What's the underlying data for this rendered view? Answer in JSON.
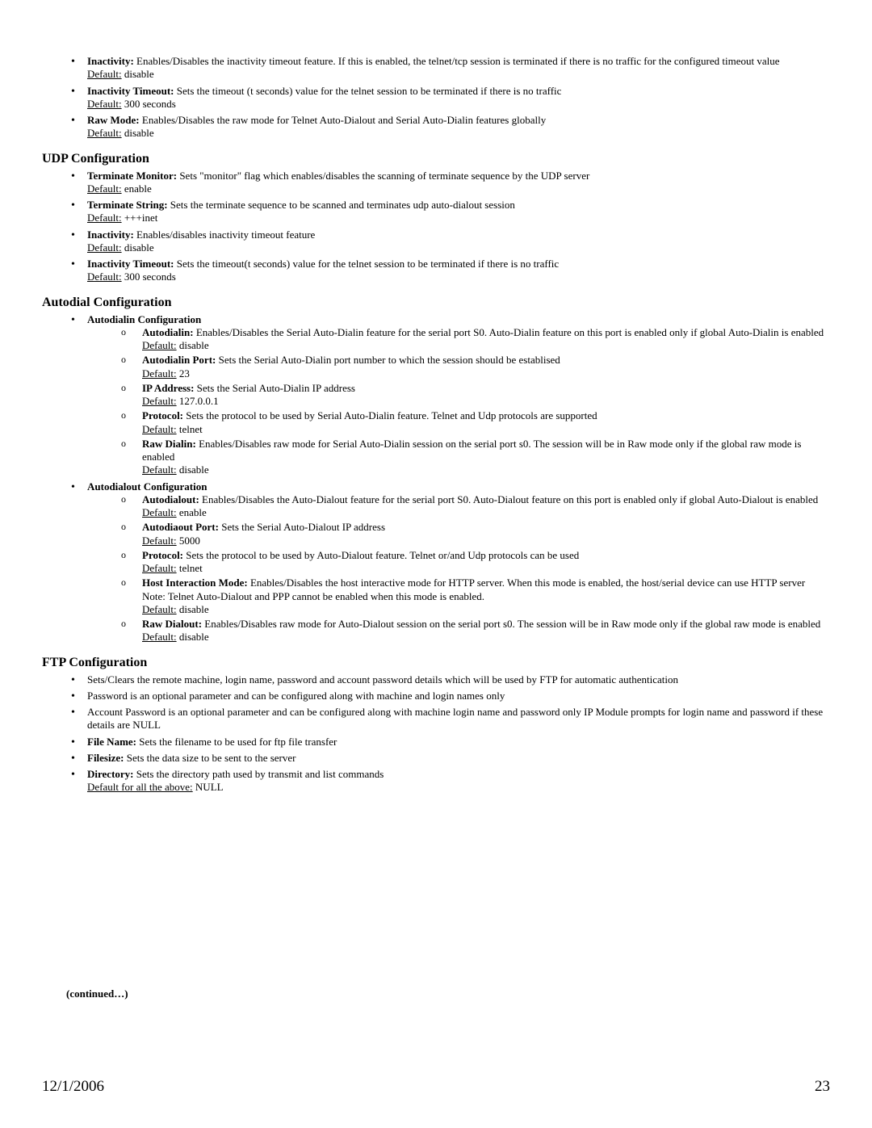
{
  "intro_items": [
    {
      "label": "Inactivity:",
      "desc": "Enables/Disables the inactivity timeout feature. If this is enabled, the telnet/tcp session is terminated if there is no traffic for the configured timeout value",
      "default_label": "Default:",
      "default_value": "disable"
    },
    {
      "label": "Inactivity Timeout:",
      "desc": "Sets the timeout (t seconds) value for the telnet session to be terminated if there is no traffic",
      "default_label": "Default:",
      "default_value": "300 seconds"
    },
    {
      "label": "Raw Mode:",
      "desc": "Enables/Disables the raw mode for Telnet Auto-Dialout and Serial Auto-Dialin features globally",
      "default_label": "Default:",
      "default_value": "disable"
    }
  ],
  "udp_heading": "UDP Configuration",
  "udp_items": [
    {
      "label": "Terminate Monitor:",
      "desc": "Sets \"monitor\" flag which enables/disables the scanning of terminate sequence by the UDP server",
      "default_label": "Default:",
      "default_value": "enable"
    },
    {
      "label": "Terminate String:",
      "desc": "Sets the terminate sequence to be scanned and terminates udp auto-dialout session",
      "default_label": "Default:",
      "default_value": "+++inet"
    },
    {
      "label": "Inactivity:",
      "desc": "Enables/disables inactivity timeout feature",
      "default_label": "Default:",
      "default_value": "disable"
    },
    {
      "label": "Inactivity Timeout:",
      "desc": "Sets the timeout(t seconds) value for the telnet session to be terminated if there is no traffic",
      "default_label": "Default:",
      "default_value": "300 seconds"
    }
  ],
  "autodial_heading": "Autodial Configuration",
  "autodialin_label": "Autodialin Configuration",
  "autodialin_items": [
    {
      "label": "Autodialin:",
      "desc": "Enables/Disables the Serial Auto-Dialin feature for the serial port S0. Auto-Dialin feature on this port is enabled only if global Auto-Dialin is enabled",
      "default_label": "Default:",
      "default_value": "disable"
    },
    {
      "label": "Autodialin Port:",
      "desc": "Sets the Serial Auto-Dialin port number to which the session should be establised",
      "default_label": "Default:",
      "default_value": "23"
    },
    {
      "label": "IP Address:",
      "desc": "Sets the Serial Auto-Dialin IP address",
      "default_label": "Default:",
      "default_value": "127.0.0.1"
    },
    {
      "label": "Protocol:",
      "desc": "Sets the protocol to be used by Serial Auto-Dialin feature. Telnet and Udp protocols are supported",
      "default_label": "Default:",
      "default_value": "telnet"
    },
    {
      "label": "Raw Dialin:",
      "desc": "Enables/Disables raw mode for Serial Auto-Dialin session on the serial port s0. The session will be in Raw mode only if the global raw mode is enabled",
      "default_label": "Default:",
      "default_value": "disable"
    }
  ],
  "autodialout_label": "Autodialout Configuration",
  "autodialout_items": [
    {
      "label": "Autodialout:",
      "desc": "Enables/Disables the Auto-Dialout feature for the serial port S0. Auto-Dialout feature on this port is enabled only if global Auto-Dialout is enabled",
      "default_label": "Default:",
      "default_value": "enable"
    },
    {
      "label": "Autodiaout Port:",
      "desc": "Sets the Serial Auto-Dialout IP address",
      "default_label": "Default:",
      "default_value": "5000"
    },
    {
      "label": "Protocol:",
      "desc": "Sets the protocol to be used by Auto-Dialout feature. Telnet or/and Udp protocols can be used",
      "default_label": "Default:",
      "default_value": "telnet"
    },
    {
      "label": "Host Interaction Mode:",
      "desc": "Enables/Disables the host interactive mode for HTTP server. When this mode is enabled, the host/serial device can use HTTP server",
      "note": "Note: Telnet Auto-Dialout and PPP cannot be enabled when this mode is enabled.",
      "default_label": "Default:",
      "default_value": "disable"
    },
    {
      "label": "Raw Dialout:",
      "desc": "Enables/Disables raw mode for Auto-Dialout session on the serial port s0. The session will be in Raw mode only if the global raw mode is enabled",
      "default_label": "Default:",
      "default_value": "disable"
    }
  ],
  "ftp_heading": "FTP Configuration",
  "ftp_plain_items": [
    "Sets/Clears the remote machine, login name, password and account password details which will be used by FTP for automatic authentication",
    "Password is an optional parameter and can be configured along with machine and login names only",
    "Account Password is an optional parameter and can be configured along with machine login name and password only IP Module prompts for login name and password if these details are NULL"
  ],
  "ftp_labeled_items": [
    {
      "label": "File Name:",
      "desc": "Sets the filename to be used for ftp file transfer"
    },
    {
      "label": "Filesize:",
      "desc": "Sets the data size to be sent to the server"
    },
    {
      "label": "Directory:",
      "desc": "Sets the directory path used by transmit and list commands"
    }
  ],
  "ftp_default_label": "Default for all the above:",
  "ftp_default_value": "NULL",
  "continued": "(continued…)",
  "footer_date": "12/1/2006",
  "footer_page": "23"
}
